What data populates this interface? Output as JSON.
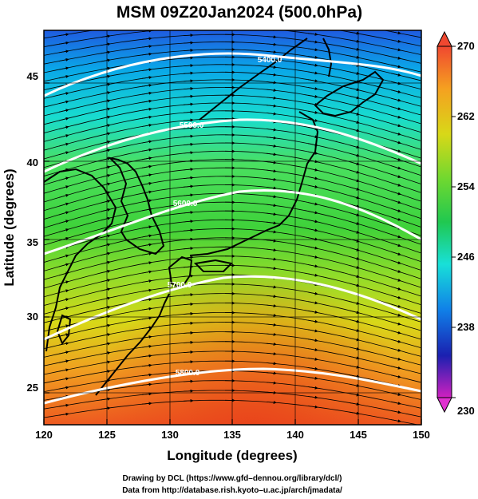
{
  "title": "MSM 09Z20Jan2024 (500.0hPa)",
  "xlabel": "Longitude (degrees)",
  "ylabel": "Latitude  (degrees)",
  "x_ticks": [
    "120",
    "125",
    "130",
    "135",
    "140",
    "145",
    "150"
  ],
  "y_ticks": [
    "25",
    "30",
    "35",
    "40",
    "45"
  ],
  "colorbar": {
    "min": 230,
    "max": 270,
    "tick_labels": [
      "270",
      "262",
      "254",
      "246",
      "238",
      "230"
    ]
  },
  "contours": [
    {
      "label": "5400.0"
    },
    {
      "label": "5500.0"
    },
    {
      "label": "5600.0"
    },
    {
      "label": "5700.0"
    },
    {
      "label": "5800.0"
    }
  ],
  "credits": {
    "line1": "Drawing by DCL (https://www.gfd–dennou.org/library/dcl/)",
    "line2": "Data from http://database.rish.kyoto–u.ac.jp/arch/jmadata/"
  }
}
